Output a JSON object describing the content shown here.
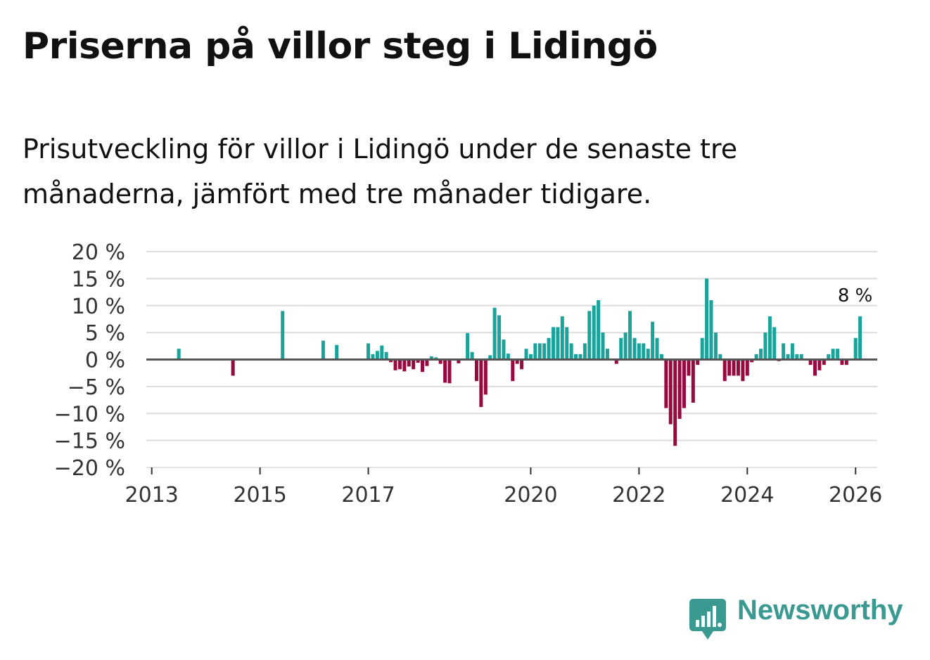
{
  "header": {
    "title": "Priserna på villor steg i Lidingö",
    "subtitle": "Prisutveckling för villor i Lidingö under de senaste tre månaderna, jämfört med tre månader tidigare."
  },
  "brand": {
    "name": "Newsworthy",
    "icon": "newsworthy-logo-icon",
    "color": "#3a9a91"
  },
  "colors": {
    "positive": "#1aa39a",
    "negative": "#980a3f",
    "grid": "#dddddd",
    "zero_line": "#555555"
  },
  "chart_data": {
    "type": "bar",
    "title": "Priserna på villor steg i Lidingö",
    "xlabel": "",
    "ylabel": "",
    "ylim": [
      -20,
      20
    ],
    "xlim": [
      2012.9,
      2026.4
    ],
    "y_ticks": [
      20,
      15,
      10,
      5,
      0,
      -5,
      -10,
      -15,
      -20
    ],
    "y_tick_labels": [
      "20 %",
      "15 %",
      "10 %",
      "5 %",
      "0 %",
      "−5 %",
      "−10 %",
      "−15 %",
      "−20 %"
    ],
    "x_ticks": [
      2013,
      2015,
      2017,
      2020,
      2022,
      2024,
      2026
    ],
    "x_tick_labels": [
      "2013",
      "2015",
      "2017",
      "2020",
      "2022",
      "2024",
      "2026"
    ],
    "annotation": {
      "text": "8 %",
      "x": 2026.083,
      "y": 8
    },
    "series": [
      {
        "name": "Prisutveckling",
        "points": [
          {
            "x": 2013.5,
            "y": 2
          },
          {
            "x": 2014.5,
            "y": -3
          },
          {
            "x": 2015.417,
            "y": 9
          },
          {
            "x": 2016.167,
            "y": 3.5
          },
          {
            "x": 2016.417,
            "y": 2.7
          },
          {
            "x": 2017.0,
            "y": 3
          },
          {
            "x": 2017.083,
            "y": 1
          },
          {
            "x": 2017.167,
            "y": 1.6
          },
          {
            "x": 2017.25,
            "y": 2.6
          },
          {
            "x": 2017.333,
            "y": 1.4
          },
          {
            "x": 2017.417,
            "y": -0.5
          },
          {
            "x": 2017.5,
            "y": -2
          },
          {
            "x": 2017.583,
            "y": -1.8
          },
          {
            "x": 2017.667,
            "y": -2.2
          },
          {
            "x": 2017.75,
            "y": -1.3
          },
          {
            "x": 2017.833,
            "y": -1.8
          },
          {
            "x": 2017.917,
            "y": -0.6
          },
          {
            "x": 2018.0,
            "y": -2.3
          },
          {
            "x": 2018.083,
            "y": -1.2
          },
          {
            "x": 2018.167,
            "y": 0.6
          },
          {
            "x": 2018.25,
            "y": 0.4
          },
          {
            "x": 2018.333,
            "y": -0.8
          },
          {
            "x": 2018.417,
            "y": -4.3
          },
          {
            "x": 2018.5,
            "y": -4.4
          },
          {
            "x": 2018.667,
            "y": -0.7
          },
          {
            "x": 2018.833,
            "y": 4.9
          },
          {
            "x": 2018.917,
            "y": 1.4
          },
          {
            "x": 2019.0,
            "y": -4
          },
          {
            "x": 2019.083,
            "y": -8.8
          },
          {
            "x": 2019.167,
            "y": -6.5
          },
          {
            "x": 2019.25,
            "y": 0.8
          },
          {
            "x": 2019.333,
            "y": 9.6
          },
          {
            "x": 2019.417,
            "y": 8.2
          },
          {
            "x": 2019.5,
            "y": 3.7
          },
          {
            "x": 2019.583,
            "y": 1.1
          },
          {
            "x": 2019.667,
            "y": -4
          },
          {
            "x": 2019.75,
            "y": -0.8
          },
          {
            "x": 2019.833,
            "y": -1.8
          },
          {
            "x": 2019.917,
            "y": 2
          },
          {
            "x": 2020.0,
            "y": 1
          },
          {
            "x": 2020.083,
            "y": 3
          },
          {
            "x": 2020.167,
            "y": 3
          },
          {
            "x": 2020.25,
            "y": 3
          },
          {
            "x": 2020.333,
            "y": 4
          },
          {
            "x": 2020.417,
            "y": 6
          },
          {
            "x": 2020.5,
            "y": 6
          },
          {
            "x": 2020.583,
            "y": 8
          },
          {
            "x": 2020.667,
            "y": 6
          },
          {
            "x": 2020.75,
            "y": 3
          },
          {
            "x": 2020.833,
            "y": 1
          },
          {
            "x": 2020.917,
            "y": 1
          },
          {
            "x": 2021.0,
            "y": 3
          },
          {
            "x": 2021.083,
            "y": 9
          },
          {
            "x": 2021.167,
            "y": 10
          },
          {
            "x": 2021.25,
            "y": 11
          },
          {
            "x": 2021.333,
            "y": 5
          },
          {
            "x": 2021.417,
            "y": 2
          },
          {
            "x": 2021.583,
            "y": -0.8
          },
          {
            "x": 2021.667,
            "y": 4
          },
          {
            "x": 2021.75,
            "y": 5
          },
          {
            "x": 2021.833,
            "y": 9
          },
          {
            "x": 2021.917,
            "y": 4
          },
          {
            "x": 2022.0,
            "y": 3
          },
          {
            "x": 2022.083,
            "y": 3
          },
          {
            "x": 2022.167,
            "y": 2
          },
          {
            "x": 2022.25,
            "y": 7
          },
          {
            "x": 2022.333,
            "y": 4
          },
          {
            "x": 2022.417,
            "y": 1
          },
          {
            "x": 2022.5,
            "y": -9
          },
          {
            "x": 2022.583,
            "y": -12
          },
          {
            "x": 2022.667,
            "y": -16
          },
          {
            "x": 2022.75,
            "y": -11
          },
          {
            "x": 2022.833,
            "y": -9
          },
          {
            "x": 2022.917,
            "y": -3
          },
          {
            "x": 2023.0,
            "y": -8
          },
          {
            "x": 2023.083,
            "y": -1
          },
          {
            "x": 2023.167,
            "y": 4
          },
          {
            "x": 2023.25,
            "y": 15
          },
          {
            "x": 2023.333,
            "y": 11
          },
          {
            "x": 2023.417,
            "y": 5
          },
          {
            "x": 2023.5,
            "y": 1
          },
          {
            "x": 2023.583,
            "y": -4
          },
          {
            "x": 2023.667,
            "y": -3
          },
          {
            "x": 2023.75,
            "y": -3
          },
          {
            "x": 2023.833,
            "y": -3
          },
          {
            "x": 2023.917,
            "y": -4
          },
          {
            "x": 2024.0,
            "y": -3
          },
          {
            "x": 2024.083,
            "y": -0.5
          },
          {
            "x": 2024.167,
            "y": 1
          },
          {
            "x": 2024.25,
            "y": 2
          },
          {
            "x": 2024.333,
            "y": 5
          },
          {
            "x": 2024.417,
            "y": 8
          },
          {
            "x": 2024.5,
            "y": 6
          },
          {
            "x": 2024.583,
            "y": -0.3
          },
          {
            "x": 2024.667,
            "y": 3
          },
          {
            "x": 2024.75,
            "y": 1
          },
          {
            "x": 2024.833,
            "y": 3
          },
          {
            "x": 2024.917,
            "y": 1
          },
          {
            "x": 2025.0,
            "y": 1
          },
          {
            "x": 2025.167,
            "y": -1
          },
          {
            "x": 2025.25,
            "y": -3
          },
          {
            "x": 2025.333,
            "y": -2
          },
          {
            "x": 2025.417,
            "y": -1
          },
          {
            "x": 2025.5,
            "y": 1
          },
          {
            "x": 2025.583,
            "y": 2
          },
          {
            "x": 2025.667,
            "y": 2
          },
          {
            "x": 2025.75,
            "y": -1
          },
          {
            "x": 2025.833,
            "y": -1
          },
          {
            "x": 2026.0,
            "y": 4
          },
          {
            "x": 2026.083,
            "y": 8
          }
        ]
      }
    ]
  }
}
